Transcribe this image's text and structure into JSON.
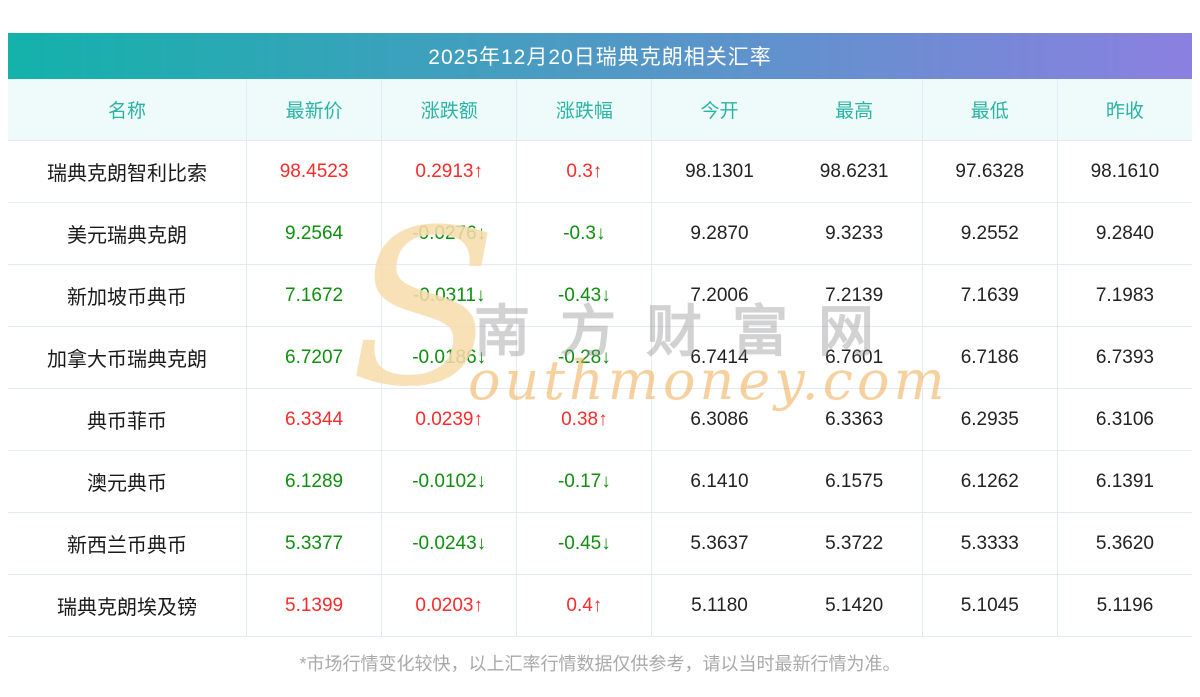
{
  "page": {
    "title": "2025年12月20日瑞典克朗相关汇率",
    "footer": "*市场行情变化较快，以上汇率行情数据仅供参考，请以当时最新行情为准。"
  },
  "watermark": {
    "initial": "S",
    "cn": "南方财富网",
    "en": "outhmoney.com"
  },
  "colors": {
    "up": "#fb2b2b",
    "down": "#0e8f0e",
    "gradient_left": "#13b2aa",
    "gradient_right": "#8b80e0",
    "header_text": "#2ab4a4",
    "header_bg": "#eefbfa"
  },
  "table": {
    "columns": [
      "名称",
      "最新价",
      "涨跌额",
      "涨跌幅",
      "今开",
      "最高",
      "最低",
      "昨收"
    ],
    "rows": [
      {
        "name": "瑞典克朗智利比索",
        "latest": "98.4523",
        "change": "0.2913↑",
        "change_pct": "0.3↑",
        "trend": "up",
        "open": "98.1301",
        "high": "98.6231",
        "low": "97.6328",
        "prev_close": "98.1610"
      },
      {
        "name": "美元瑞典克朗",
        "latest": "9.2564",
        "change": "-0.0276↓",
        "change_pct": "-0.3↓",
        "trend": "down",
        "open": "9.2870",
        "high": "9.3233",
        "low": "9.2552",
        "prev_close": "9.2840"
      },
      {
        "name": "新加坡币典币",
        "latest": "7.1672",
        "change": "-0.0311↓",
        "change_pct": "-0.43↓",
        "trend": "down",
        "open": "7.2006",
        "high": "7.2139",
        "low": "7.1639",
        "prev_close": "7.1983"
      },
      {
        "name": "加拿大币瑞典克朗",
        "latest": "6.7207",
        "change": "-0.0186↓",
        "change_pct": "-0.28↓",
        "trend": "down",
        "open": "6.7414",
        "high": "6.7601",
        "low": "6.7186",
        "prev_close": "6.7393"
      },
      {
        "name": "典币菲币",
        "latest": "6.3344",
        "change": "0.0239↑",
        "change_pct": "0.38↑",
        "trend": "up",
        "open": "6.3086",
        "high": "6.3363",
        "low": "6.2935",
        "prev_close": "6.3106"
      },
      {
        "name": "澳元典币",
        "latest": "6.1289",
        "change": "-0.0102↓",
        "change_pct": "-0.17↓",
        "trend": "down",
        "open": "6.1410",
        "high": "6.1575",
        "low": "6.1262",
        "prev_close": "6.1391"
      },
      {
        "name": "新西兰币典币",
        "latest": "5.3377",
        "change": "-0.0243↓",
        "change_pct": "-0.45↓",
        "trend": "down",
        "open": "5.3637",
        "high": "5.3722",
        "low": "5.3333",
        "prev_close": "5.3620"
      },
      {
        "name": "瑞典克朗埃及镑",
        "latest": "5.1399",
        "change": "0.0203↑",
        "change_pct": "0.4↑",
        "trend": "up",
        "open": "5.1180",
        "high": "5.1420",
        "low": "5.1045",
        "prev_close": "5.1196"
      }
    ]
  },
  "chart_data": {
    "type": "table",
    "title": "2025年12月20日瑞典克朗相关汇率",
    "columns": [
      "名称",
      "最新价",
      "涨跌额",
      "涨跌幅",
      "今开",
      "最高",
      "最低",
      "昨收"
    ],
    "rows": [
      [
        "瑞典克朗智利比索",
        98.4523,
        0.2913,
        0.3,
        98.1301,
        98.6231,
        97.6328,
        98.161
      ],
      [
        "美元瑞典克朗",
        9.2564,
        -0.0276,
        -0.3,
        9.287,
        9.3233,
        9.2552,
        9.284
      ],
      [
        "新加坡币典币",
        7.1672,
        -0.0311,
        -0.43,
        7.2006,
        7.2139,
        7.1639,
        7.1983
      ],
      [
        "加拿大币瑞典克朗",
        6.7207,
        -0.0186,
        -0.28,
        6.7414,
        6.7601,
        6.7186,
        6.7393
      ],
      [
        "典币菲币",
        6.3344,
        0.0239,
        0.38,
        6.3086,
        6.3363,
        6.2935,
        6.3106
      ],
      [
        "澳元典币",
        6.1289,
        -0.0102,
        -0.17,
        6.141,
        6.1575,
        6.1262,
        6.1391
      ],
      [
        "新西兰币典币",
        5.3377,
        -0.0243,
        -0.45,
        5.3637,
        5.3722,
        5.3333,
        5.362
      ],
      [
        "瑞典克朗埃及镑",
        5.1399,
        0.0203,
        0.4,
        5.118,
        5.142,
        5.1045,
        5.1196
      ]
    ]
  }
}
